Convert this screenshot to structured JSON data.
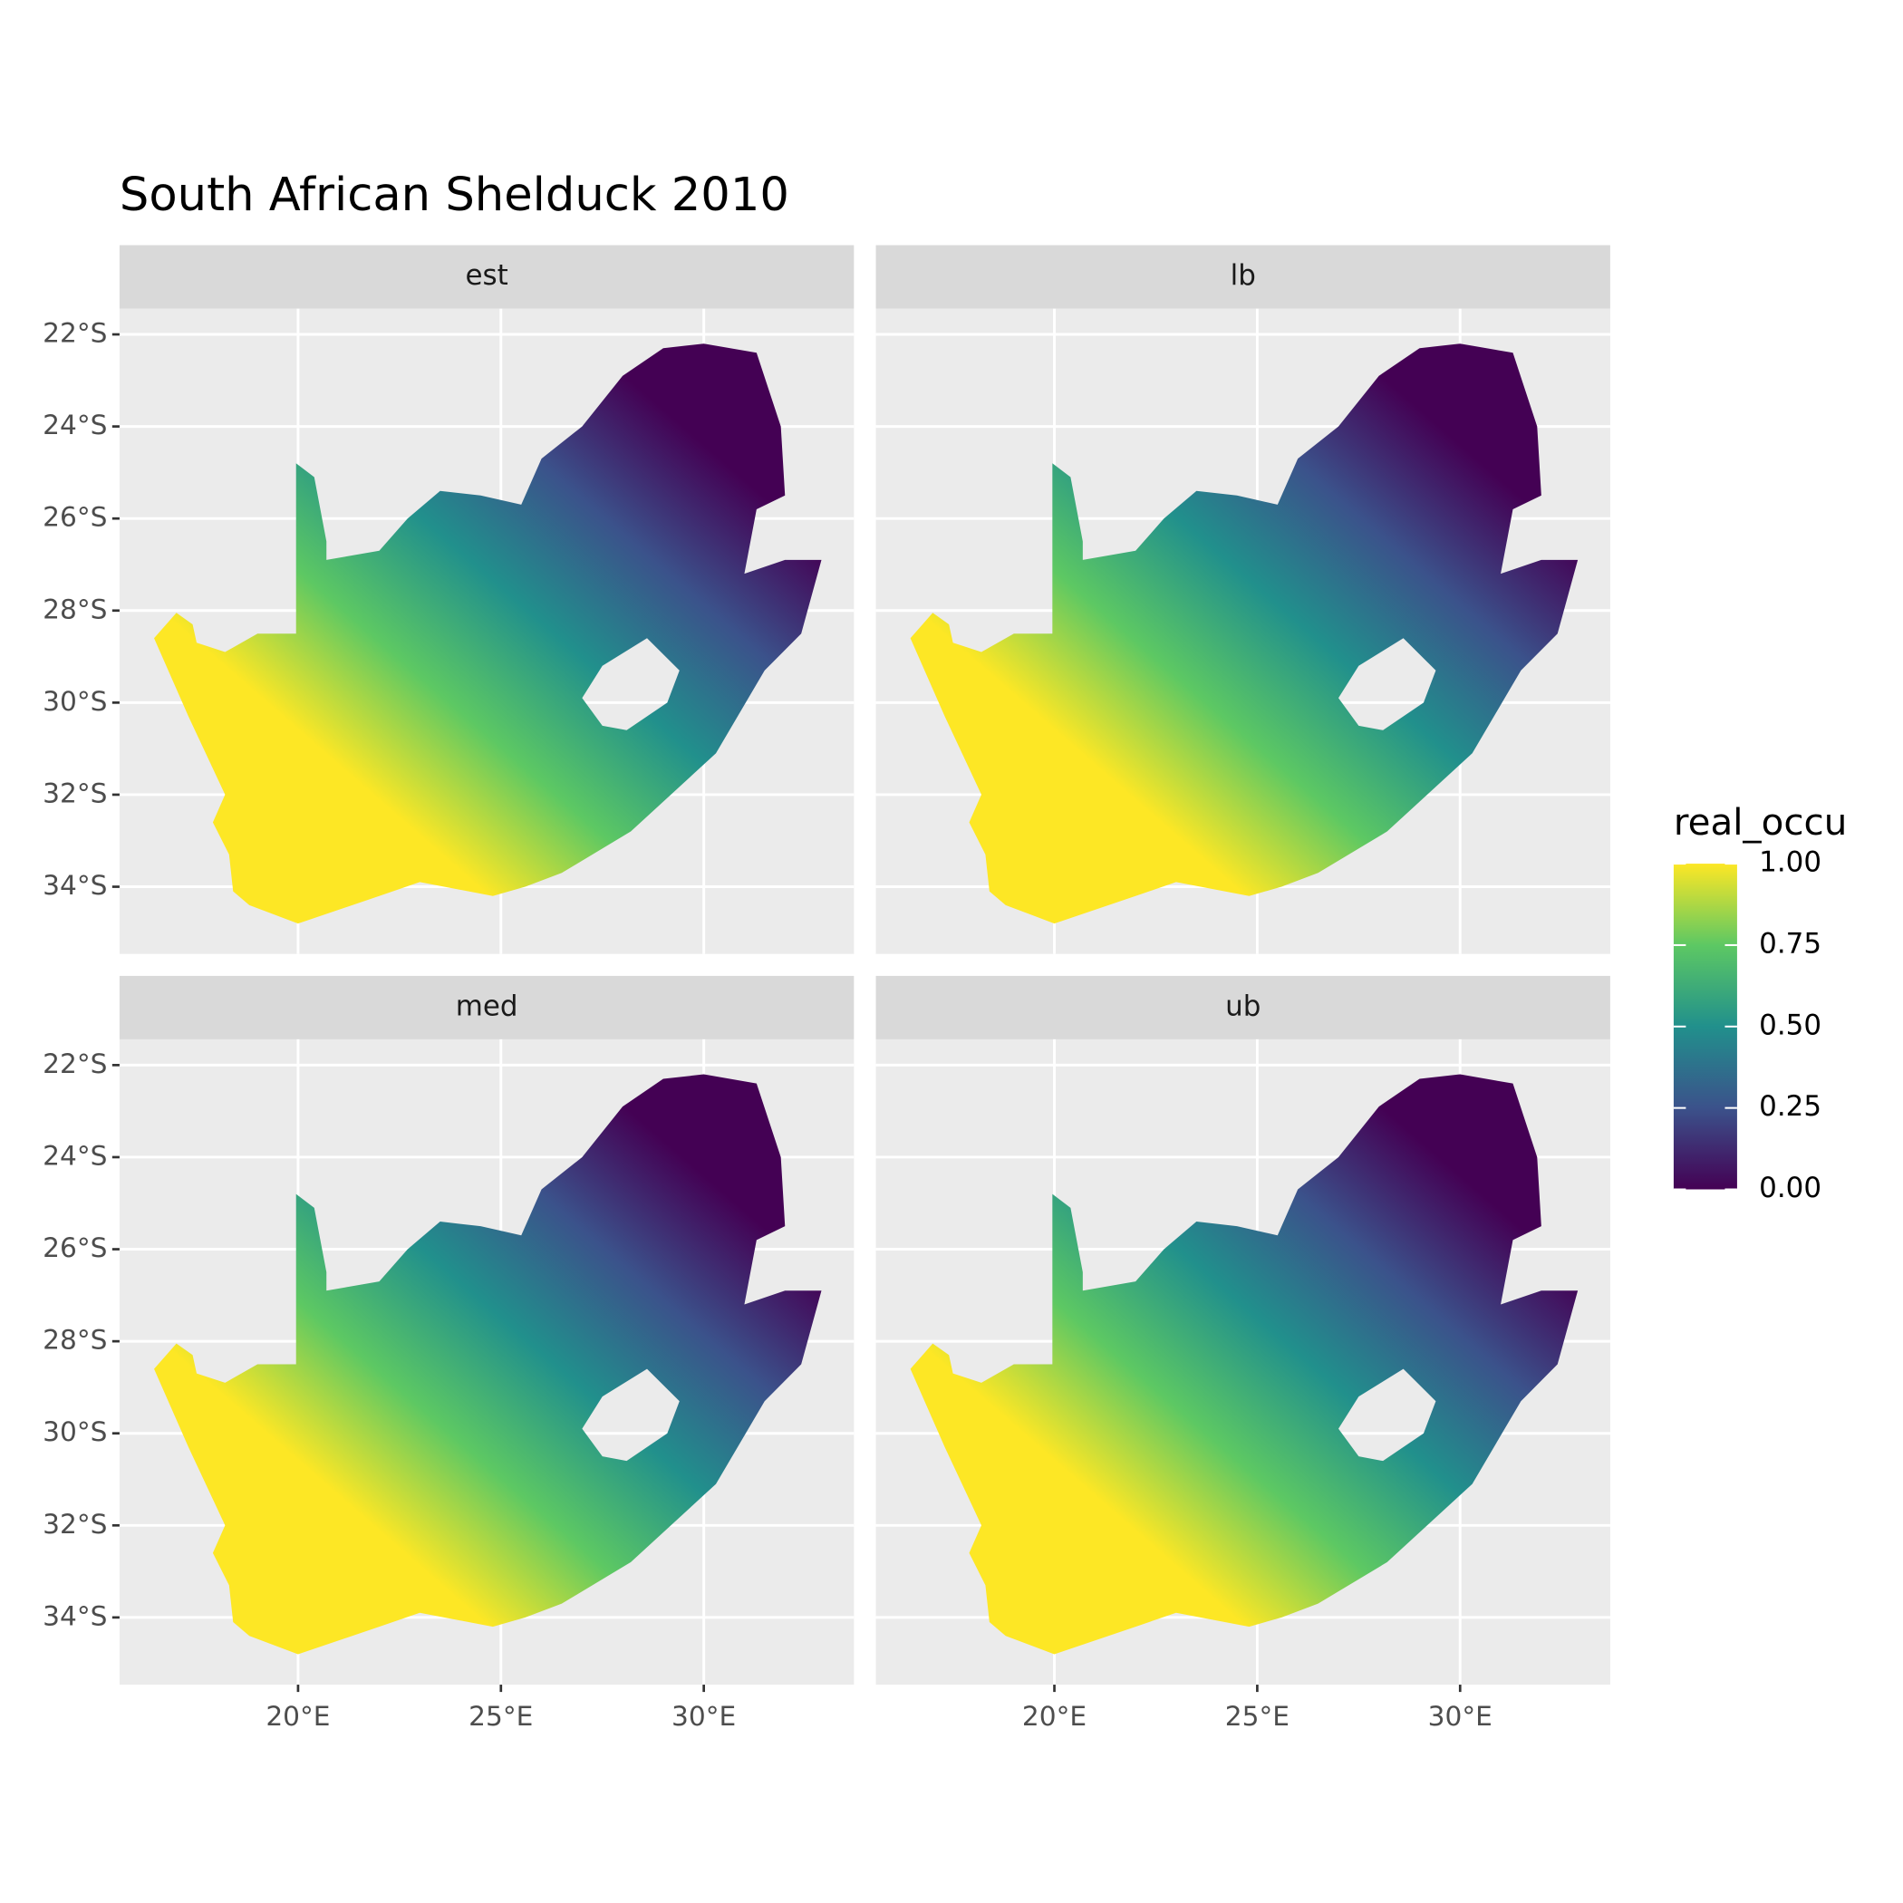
{
  "chart_data": {
    "type": "raster-map",
    "title": "South African Shelduck 2010",
    "facets": [
      "est",
      "lb",
      "med",
      "ub"
    ],
    "xlim": [
      15.6,
      33.7
    ],
    "ylim": [
      -35.46,
      -21.44
    ],
    "xticks": [
      {
        "value": 20,
        "label": "20°E"
      },
      {
        "value": 25,
        "label": "25°E"
      },
      {
        "value": 30,
        "label": "30°E"
      }
    ],
    "yticks": [
      {
        "value": -22,
        "label": "22°S"
      },
      {
        "value": -24,
        "label": "24°S"
      },
      {
        "value": -26,
        "label": "26°S"
      },
      {
        "value": -28,
        "label": "28°S"
      },
      {
        "value": -30,
        "label": "30°S"
      },
      {
        "value": -32,
        "label": "32°S"
      },
      {
        "value": -34,
        "label": "34°S"
      }
    ],
    "grid": true,
    "legend": {
      "title": "real_occu",
      "position": "right",
      "ticks": [
        {
          "value": 0,
          "label": "0.00"
        },
        {
          "value": 0.25,
          "label": "0.25"
        },
        {
          "value": 0.5,
          "label": "0.50"
        },
        {
          "value": 0.75,
          "label": "0.75"
        },
        {
          "value": 1,
          "label": "1.00"
        }
      ],
      "range": [
        0,
        1
      ],
      "colorscale": [
        "#440154",
        "#3b528b",
        "#21908c",
        "#5dc863",
        "#fde725"
      ]
    }
  }
}
